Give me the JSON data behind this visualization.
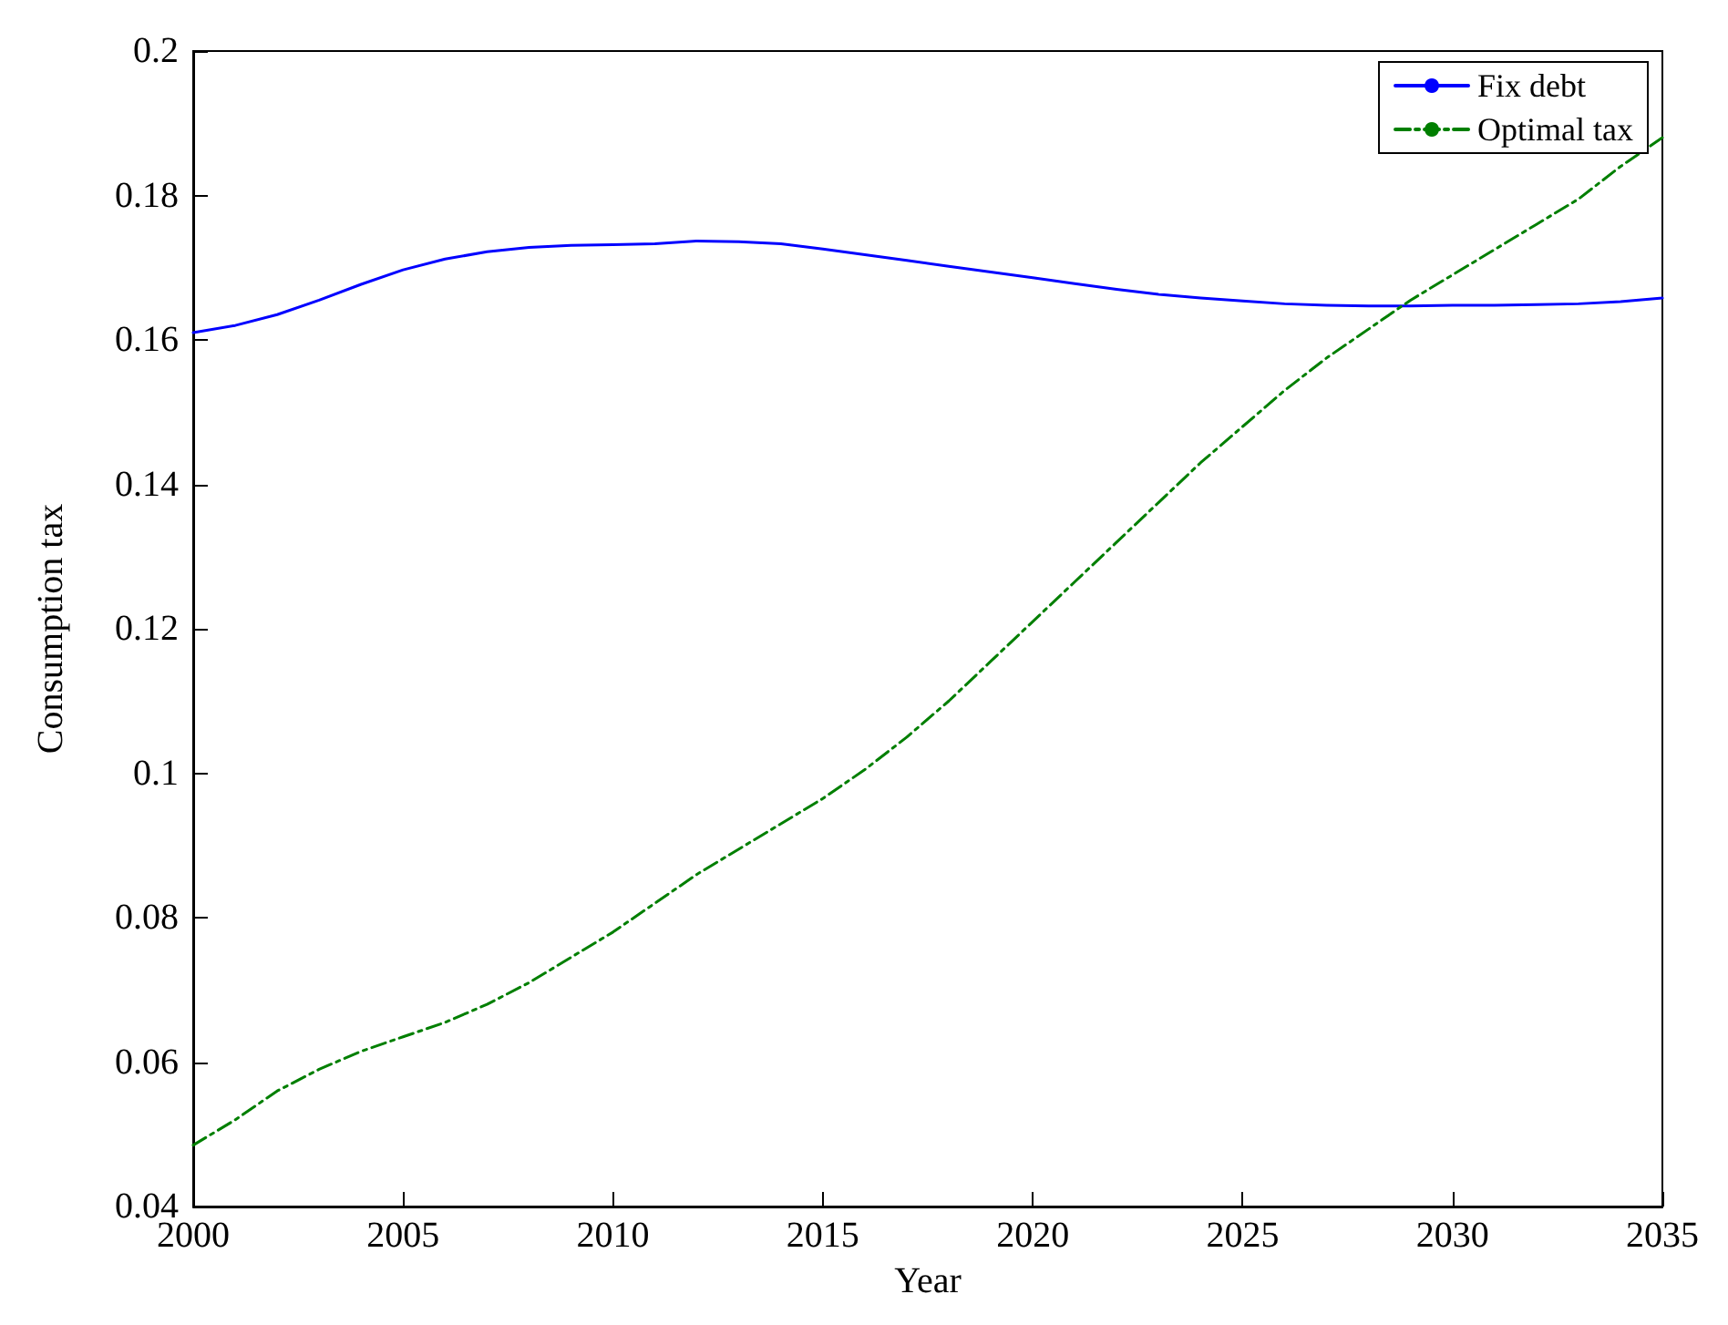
{
  "chart_data": {
    "type": "line",
    "xlabel": "Year",
    "ylabel": "Consumption tax",
    "x": [
      2000,
      2001,
      2002,
      2003,
      2004,
      2005,
      2006,
      2007,
      2008,
      2009,
      2010,
      2011,
      2012,
      2013,
      2014,
      2015,
      2016,
      2017,
      2018,
      2019,
      2020,
      2021,
      2022,
      2023,
      2024,
      2025,
      2026,
      2027,
      2028,
      2029,
      2030,
      2031,
      2032,
      2033,
      2034,
      2035
    ],
    "series": [
      {
        "name": "Fix debt",
        "color": "#0000ff",
        "line_style": "solid",
        "values": [
          0.161,
          0.162,
          0.1635,
          0.1655,
          0.1677,
          0.1697,
          0.1712,
          0.1722,
          0.1728,
          0.1731,
          0.1732,
          0.1733,
          0.1737,
          0.1736,
          0.1733,
          0.1726,
          0.1718,
          0.171,
          0.1702,
          0.1694,
          0.1686,
          0.1678,
          0.167,
          0.1663,
          0.1658,
          0.1654,
          0.165,
          0.1648,
          0.1647,
          0.1647,
          0.1648,
          0.1648,
          0.1649,
          0.165,
          0.1653,
          0.1658
        ]
      },
      {
        "name": "Optimal tax",
        "color": "#007f00",
        "line_style": "dashdot",
        "values": [
          0.0485,
          0.052,
          0.056,
          0.059,
          0.0615,
          0.0635,
          0.0655,
          0.068,
          0.071,
          0.0745,
          0.078,
          0.082,
          0.086,
          0.0895,
          0.093,
          0.0965,
          0.1005,
          0.105,
          0.11,
          0.1155,
          0.121,
          0.1265,
          0.132,
          0.1375,
          0.143,
          0.148,
          0.153,
          0.1575,
          0.1615,
          0.1655,
          0.169,
          0.1725,
          0.176,
          0.1795,
          0.184,
          0.188
        ]
      }
    ],
    "xlim": [
      2000,
      2035
    ],
    "xticks": [
      2000,
      2005,
      2010,
      2015,
      2020,
      2025,
      2030,
      2035
    ],
    "ylim": [
      0.04,
      0.2
    ],
    "yticks": [
      0.04,
      0.06,
      0.08,
      0.1,
      0.12,
      0.14,
      0.16,
      0.18,
      0.2
    ],
    "grid": false,
    "legend": "top right",
    "marker": "none"
  }
}
